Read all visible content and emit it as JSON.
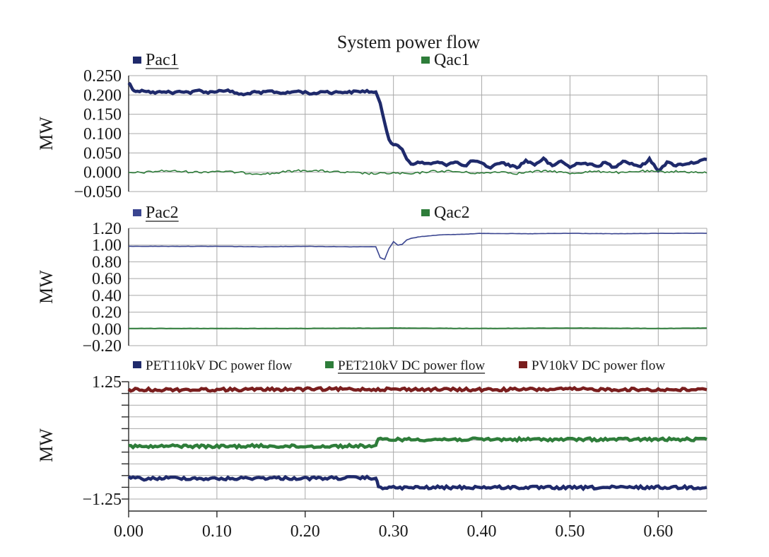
{
  "chart_data": [
    {
      "type": "line",
      "title": "System power flow",
      "ylabel": "MW",
      "xlim": [
        0,
        0.655
      ],
      "ylim": [
        -0.05,
        0.25
      ],
      "yticks": [
        "0.250",
        "0.200",
        "0.150",
        "0.100",
        "0.050",
        "0.000",
        "−0.050"
      ],
      "ytick_values": [
        0.25,
        0.2,
        0.15,
        0.1,
        0.05,
        0.0,
        -0.05
      ],
      "grid": true,
      "series": [
        {
          "name": "Pac1",
          "color": "#1f2a6b",
          "x": [
            0.0,
            0.003,
            0.006,
            0.01,
            0.015,
            0.02,
            0.03,
            0.04,
            0.05,
            0.06,
            0.07,
            0.08,
            0.09,
            0.1,
            0.11,
            0.12,
            0.13,
            0.14,
            0.15,
            0.16,
            0.17,
            0.18,
            0.19,
            0.2,
            0.21,
            0.22,
            0.23,
            0.24,
            0.25,
            0.26,
            0.27,
            0.28,
            0.285,
            0.29,
            0.295,
            0.3,
            0.305,
            0.31,
            0.315,
            0.32,
            0.33,
            0.34,
            0.35,
            0.36,
            0.37,
            0.38,
            0.39,
            0.4,
            0.41,
            0.42,
            0.43,
            0.44,
            0.45,
            0.46,
            0.47,
            0.48,
            0.49,
            0.5,
            0.51,
            0.52,
            0.53,
            0.54,
            0.55,
            0.56,
            0.57,
            0.58,
            0.59,
            0.6,
            0.61,
            0.62,
            0.63,
            0.64,
            0.655
          ],
          "y": [
            0.232,
            0.222,
            0.212,
            0.208,
            0.213,
            0.21,
            0.205,
            0.21,
            0.205,
            0.21,
            0.206,
            0.212,
            0.206,
            0.21,
            0.212,
            0.206,
            0.2,
            0.207,
            0.205,
            0.21,
            0.206,
            0.205,
            0.21,
            0.207,
            0.202,
            0.21,
            0.206,
            0.208,
            0.207,
            0.209,
            0.21,
            0.205,
            0.18,
            0.13,
            0.085,
            0.07,
            0.068,
            0.06,
            0.035,
            0.022,
            0.025,
            0.022,
            0.025,
            0.02,
            0.028,
            0.015,
            0.03,
            0.022,
            0.012,
            0.025,
            0.02,
            0.012,
            0.03,
            0.02,
            0.035,
            0.015,
            0.03,
            0.012,
            0.025,
            0.022,
            0.015,
            0.025,
            0.012,
            0.03,
            0.022,
            0.015,
            0.033,
            0.005,
            0.025,
            0.018,
            0.022,
            0.025,
            0.033
          ]
        },
        {
          "name": "Qac1",
          "color": "#2e7d3a",
          "x": [
            0.0,
            0.02,
            0.04,
            0.06,
            0.08,
            0.1,
            0.12,
            0.14,
            0.16,
            0.18,
            0.2,
            0.22,
            0.24,
            0.26,
            0.28,
            0.3,
            0.32,
            0.34,
            0.36,
            0.38,
            0.4,
            0.42,
            0.44,
            0.46,
            0.48,
            0.5,
            0.52,
            0.54,
            0.56,
            0.58,
            0.6,
            0.62,
            0.64,
            0.655
          ],
          "y": [
            -0.002,
            0.0,
            0.004,
            0.002,
            0.0,
            0.003,
            0.0,
            -0.003,
            -0.004,
            0.002,
            0.005,
            0.003,
            0.0,
            -0.002,
            -0.004,
            -0.002,
            -0.005,
            0.002,
            0.003,
            0.0,
            -0.003,
            0.002,
            -0.003,
            0.002,
            0.003,
            -0.003,
            0.001,
            0.002,
            -0.002,
            0.003,
            0.001,
            0.002,
            0.0,
            -0.002
          ]
        }
      ]
    },
    {
      "type": "line",
      "ylabel": "MW",
      "xlim": [
        0,
        0.655
      ],
      "ylim": [
        -0.2,
        1.2
      ],
      "yticks": [
        "1.20",
        "1.00",
        "0.80",
        "0.60",
        "0.40",
        "0.20",
        "0.00",
        "−0.20"
      ],
      "ytick_values": [
        1.2,
        1.0,
        0.8,
        0.6,
        0.4,
        0.2,
        0.0,
        -0.2
      ],
      "grid": true,
      "series": [
        {
          "name": "Pac2",
          "color": "#3a4590",
          "x": [
            0.0,
            0.05,
            0.1,
            0.15,
            0.2,
            0.25,
            0.27,
            0.28,
            0.285,
            0.29,
            0.295,
            0.3,
            0.305,
            0.31,
            0.315,
            0.32,
            0.33,
            0.35,
            0.38,
            0.4,
            0.45,
            0.5,
            0.55,
            0.6,
            0.655
          ],
          "y": [
            0.985,
            0.985,
            0.985,
            0.98,
            0.985,
            0.98,
            0.98,
            0.98,
            0.85,
            0.83,
            0.96,
            1.04,
            1.0,
            1.01,
            1.06,
            1.08,
            1.1,
            1.12,
            1.13,
            1.14,
            1.135,
            1.14,
            1.135,
            1.14,
            1.14
          ]
        },
        {
          "name": "Qac2",
          "color": "#2e7d3a",
          "x": [
            0.0,
            0.1,
            0.2,
            0.3,
            0.4,
            0.5,
            0.6,
            0.655
          ],
          "y": [
            0.005,
            0.005,
            0.005,
            0.01,
            0.005,
            0.01,
            0.005,
            0.01
          ]
        }
      ]
    },
    {
      "type": "line",
      "ylabel": "MW",
      "xlabel": "",
      "xlim": [
        0,
        0.655
      ],
      "ylim": [
        -1.25,
        1.25
      ],
      "yticks": [
        "1.25",
        "−1.25"
      ],
      "ytick_values": [
        1.25,
        -1.25
      ],
      "grid": true,
      "xticks": [
        "0.00",
        "0.10",
        "0.20",
        "0.30",
        "0.40",
        "0.50",
        "0.60"
      ],
      "xtick_values": [
        0.0,
        0.1,
        0.2,
        0.3,
        0.4,
        0.5,
        0.6
      ],
      "series": [
        {
          "name": "PET110kV DC power flow",
          "color": "#1f2a6b",
          "x": [
            0.0,
            0.02,
            0.05,
            0.1,
            0.15,
            0.2,
            0.25,
            0.28,
            0.283,
            0.3,
            0.4,
            0.5,
            0.6,
            0.655
          ],
          "y": [
            -0.8,
            -0.82,
            -0.8,
            -0.82,
            -0.8,
            -0.81,
            -0.8,
            -0.8,
            -1.0,
            -1.01,
            -1.0,
            -1.01,
            -1.0,
            -1.0
          ]
        },
        {
          "name": "PET210kV DC power flow",
          "color": "#2e7d3a",
          "x": [
            0.0,
            0.02,
            0.05,
            0.1,
            0.15,
            0.2,
            0.25,
            0.28,
            0.283,
            0.3,
            0.4,
            0.5,
            0.6,
            0.655
          ],
          "y": [
            -0.12,
            -0.14,
            -0.12,
            -0.13,
            -0.12,
            -0.13,
            -0.12,
            -0.12,
            0.02,
            0.02,
            0.02,
            0.02,
            0.02,
            0.02
          ]
        },
        {
          "name": "PV10kV DC power flow",
          "color": "#7a1e1e",
          "x": [
            0.0,
            0.1,
            0.2,
            0.3,
            0.4,
            0.5,
            0.6,
            0.655
          ],
          "y": [
            1.08,
            1.08,
            1.09,
            1.09,
            1.08,
            1.09,
            1.08,
            1.08
          ]
        }
      ]
    }
  ]
}
